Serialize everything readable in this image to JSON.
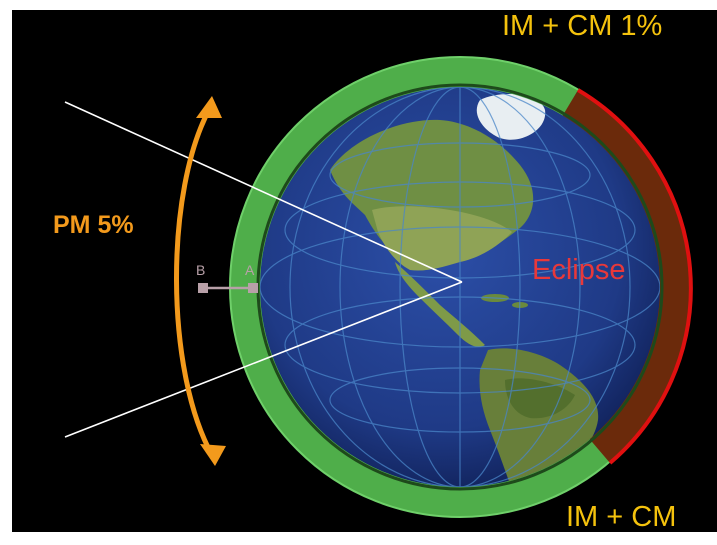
{
  "labels": {
    "top_right": "IM + CM 1%",
    "bottom_right": "IM + CM",
    "pm": "PM 5%",
    "eclipse": "Eclipse",
    "point_b": "B",
    "point_a": "A"
  },
  "colors": {
    "background": "#000000",
    "ring": "#4fae4a",
    "ring_inner_edge": "#2f6d2a",
    "eclipse_fill": "#6b2a0b",
    "eclipse_edge": "#e01010",
    "label_yellow": "#f4c20d",
    "arrow_orange": "#f39a1c",
    "eclipse_text": "#e8383a",
    "ocean": "#1f3a86",
    "land": "#6b8a3e",
    "grid": "#4a86c8",
    "line_white": "#ffffff",
    "point_marker": "#b8a0a8"
  },
  "icons": {
    "globe": "earth-globe-icon",
    "arrow": "double-headed-curved-arrow-icon"
  }
}
